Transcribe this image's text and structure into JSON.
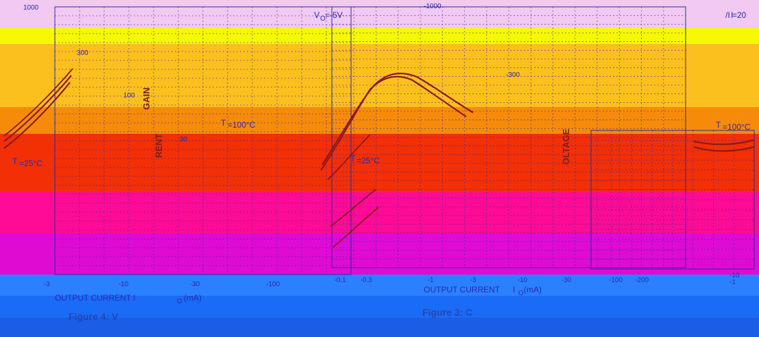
{
  "background_bands": [
    "#f1c9f1",
    "#f6f800",
    "#fcc01e",
    "#f68b0a",
    "#f22f05",
    "#ff0b95",
    "#e00bd2",
    "#2b80ff",
    "#1a6bf6",
    "#1c5de5"
  ],
  "chart_data": [
    {
      "type": "line",
      "title": "",
      "caption_fragment": "Figure 4: V",
      "x": [
        -3,
        -10,
        -30,
        -100
      ],
      "x_ticks": [
        "-3",
        "-10",
        "-30",
        "-100"
      ],
      "xlabel": "OUTPUT CURRENT  I",
      "xlabel_subscript": "O",
      "xlabel_unit": "(mA)",
      "y_ticks": [
        "1000",
        "300",
        "100",
        "30"
      ],
      "ylabel": "GAIN",
      "ylabel_2": "RENT",
      "annotations": {
        "top_right": "V",
        "top_right_sub": "O",
        "top_right_value": "=-5V",
        "temp_hot": "T",
        "temp_hot_value": "=100°C",
        "temp_room": "T",
        "temp_room_value": "=25°C"
      },
      "colors": {
        "curves": "#8b1a1a",
        "grid": "#2a2aa8"
      }
    },
    {
      "type": "line",
      "title": "",
      "caption_fragment": "Figure 3: C",
      "x": [
        -0.1,
        -0.3,
        -1,
        -3,
        -10,
        -30,
        -100,
        -200
      ],
      "x_ticks": [
        "-0.1",
        "-0.3",
        "-1",
        "-3",
        "-10",
        "-30",
        "-100",
        "-200"
      ],
      "xlabel": "OUTPUT CURRENT",
      "xlabel_symbol": "I",
      "xlabel_subscript": "O",
      "xlabel_unit": "(mA)",
      "y_ticks": [
        "-1000",
        "-300"
      ],
      "ylabel": "",
      "annotations": {
        "temp_hot": "T",
        "temp_hot_value": "=100°C",
        "temp_room": "T",
        "temp_room_value": "=25°C"
      },
      "colors": {
        "curves": "#8b1a1a",
        "grid": "#2a2aa8"
      }
    },
    {
      "type": "line",
      "title": "",
      "x_ticks": [
        "-1"
      ],
      "y_ticks": [
        "-10"
      ],
      "ylabel": "OLTAGE",
      "annotations": {
        "top_right": "I",
        "top_right_value": "/I",
        "top_right_value2": "=20",
        "temp_hot": "T",
        "temp_hot_value": "=100°C",
        "corner_tick": "-10"
      },
      "colors": {
        "curves": "#8b1a1a",
        "grid": "#2a2aa8"
      }
    }
  ]
}
